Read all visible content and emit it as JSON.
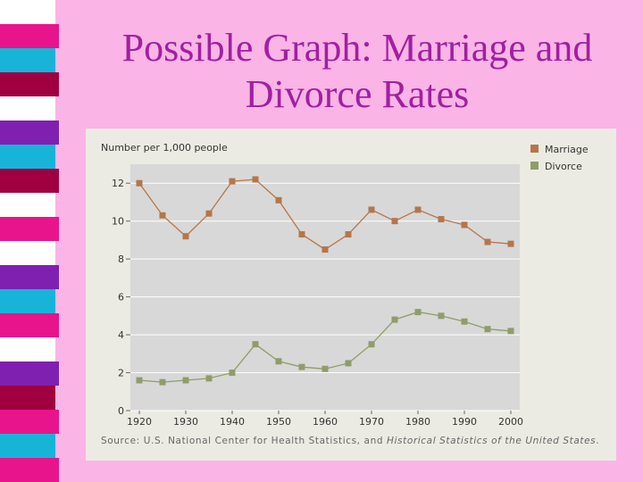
{
  "slide": {
    "title_line1": "Possible Graph: Marriage and",
    "title_line2": "Divorce Rates",
    "background": "#fbb4e6",
    "title_color": "#a020a0"
  },
  "stripe_colors": [
    "#ffffff",
    "#e8148c",
    "#18b4d8",
    "#a00040",
    "#ffffff",
    "#8020b0",
    "#18b4d8",
    "#a00040",
    "#ffffff",
    "#e8148c",
    "#ffffff",
    "#8020b0",
    "#18b4d8",
    "#e8148c",
    "#ffffff",
    "#8020b0",
    "#a00040",
    "#e8148c",
    "#18b4d8",
    "#e8148c"
  ],
  "source": {
    "prefix": "Source: U.S. National Center for Health Statistics, and ",
    "italic": "Historical Statistics of the United States",
    "suffix": "."
  },
  "chart_data": {
    "type": "line",
    "ylabel": "Number per 1,000 people",
    "xlabel": "",
    "x": [
      1920,
      1925,
      1930,
      1935,
      1940,
      1945,
      1950,
      1955,
      1960,
      1965,
      1970,
      1975,
      1980,
      1985,
      1990,
      1995,
      2000
    ],
    "ylim": [
      0,
      13
    ],
    "y_ticks": [
      "0",
      "2",
      "4",
      "6",
      "8",
      "10",
      "12"
    ],
    "x_ticks": [
      "1920",
      "1930",
      "1940",
      "1950",
      "1960",
      "1970",
      "1980",
      "1990",
      "2000"
    ],
    "grid": true,
    "legend_position": "top-right",
    "series": [
      {
        "name": "Marriage",
        "color": "#b5764a",
        "values": [
          12.0,
          10.3,
          9.2,
          10.4,
          12.1,
          12.2,
          11.1,
          9.3,
          8.5,
          9.3,
          10.6,
          10.0,
          10.6,
          10.1,
          9.8,
          8.9,
          8.8
        ]
      },
      {
        "name": "Divorce",
        "color": "#8f9d6a",
        "values": [
          1.6,
          1.5,
          1.6,
          1.7,
          2.0,
          3.5,
          2.6,
          2.3,
          2.2,
          2.5,
          3.5,
          4.8,
          5.2,
          5.0,
          4.7,
          4.3,
          4.2
        ]
      }
    ]
  }
}
